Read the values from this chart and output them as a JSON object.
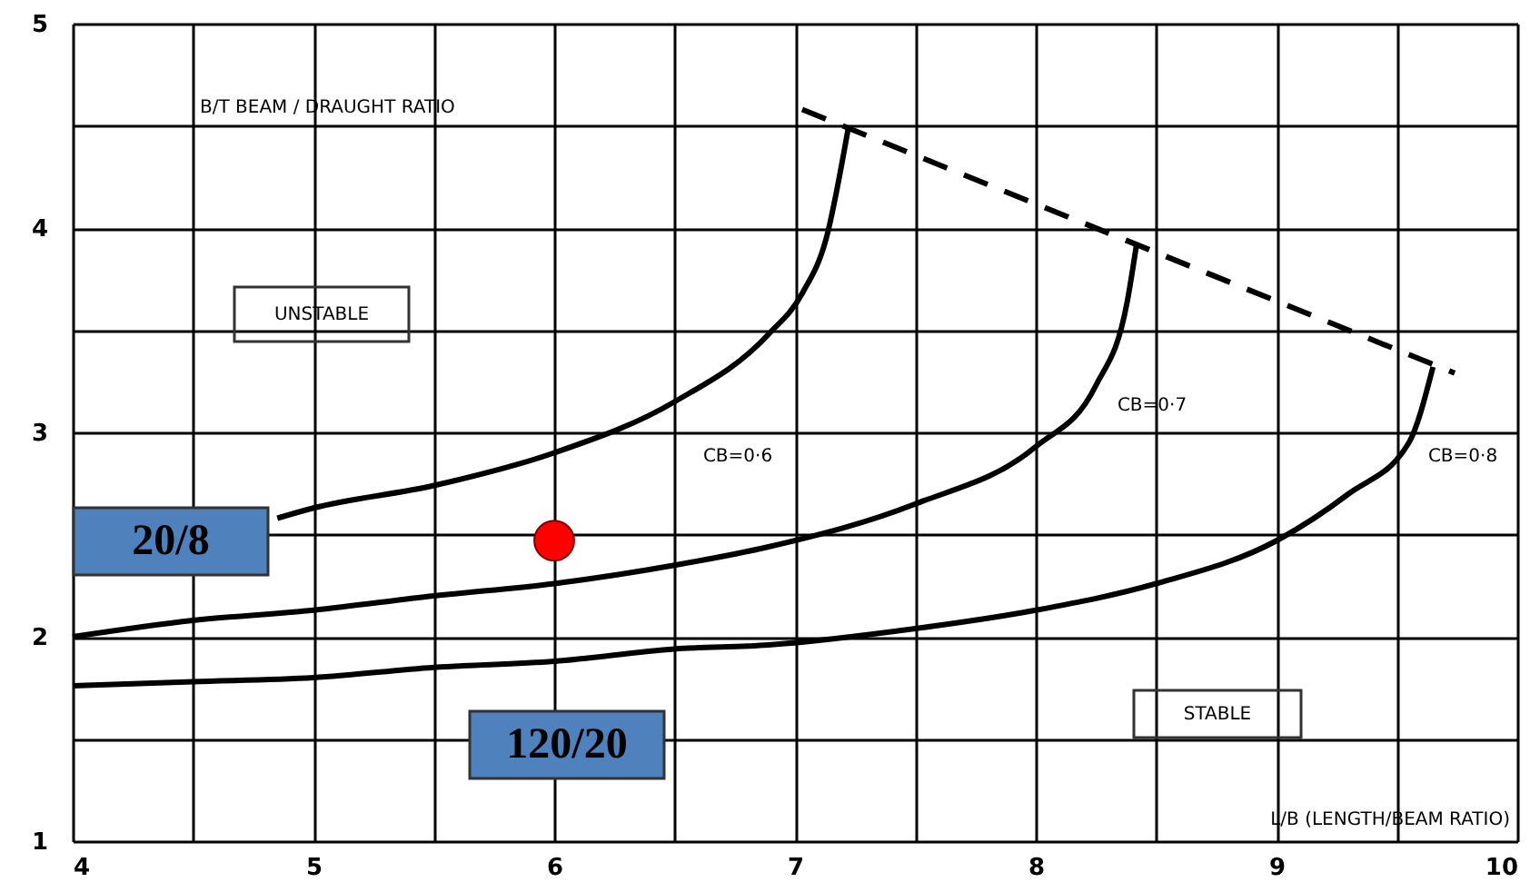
{
  "chart_data": {
    "type": "line",
    "xlabel": "L/B (LENGTH/BEAM RATIO)",
    "ylabel": "B/T  BEAM / DRAUGHT RATIO",
    "xlim": [
      4,
      10
    ],
    "xticks": [
      4,
      {
        "value": 4.5,
        "label": null
      },
      5,
      {
        "value": 5.5,
        "label": null
      },
      6,
      {
        "value": 6.5,
        "label": null
      },
      7,
      {
        "value": 7.5,
        "label": null
      },
      8,
      {
        "value": 8.5,
        "label": null
      },
      9,
      {
        "value": 9.5,
        "label": null
      },
      10
    ],
    "ylim": [
      1,
      5
    ],
    "yticks": [
      1,
      {
        "value": 1.5,
        "label": null
      },
      2,
      {
        "value": 2.5,
        "label": null
      },
      3,
      {
        "value": 3.5,
        "label": null
      },
      4,
      {
        "value": 4.5,
        "label": null
      },
      5
    ],
    "grid": true,
    "series": [
      {
        "color": "#000000",
        "line_style": "solid",
        "x": [
          4.85,
          5,
          5.5,
          6,
          6.5,
          6.89,
          7.03,
          7.13,
          7.22
        ],
        "values": [
          2.58,
          2.63,
          2.74,
          2.9,
          3.15,
          3.48,
          3.68,
          3.95,
          4.48
        ]
      },
      {
        "color": "#000000",
        "line_style": "solid",
        "x": [
          4,
          4.5,
          5,
          5.5,
          6,
          6.5,
          6.89,
          7.5,
          8,
          8.25,
          8.38,
          8.42
        ],
        "values": [
          2.0,
          2.08,
          2.13,
          2.2,
          2.26,
          2.35,
          2.44,
          2.65,
          2.93,
          3.23,
          3.64,
          3.93
        ]
      },
      {
        "color": "#000000",
        "line_style": "solid",
        "x": [
          4,
          4.5,
          5,
          5.5,
          6,
          6.5,
          6.89,
          7.5,
          8,
          8.5,
          9,
          9.3,
          9.55,
          9.65
        ],
        "values": [
          1.76,
          1.78,
          1.8,
          1.85,
          1.88,
          1.94,
          1.96,
          2.04,
          2.13,
          2.26,
          2.47,
          2.7,
          2.95,
          3.32
        ]
      },
      {
        "color": "#000000",
        "line_style": "dashed",
        "x": [
          7.03,
          9.74
        ],
        "values": [
          4.58,
          3.29
        ]
      },
      {
        "type": "scatter",
        "color": "#ff0000",
        "marker": "circle",
        "x": [
          6
        ],
        "values": [
          2.47
        ]
      }
    ],
    "annotations": [
      "CB=0·6",
      "CB=0·7",
      "CB=0·8",
      "UNSTABLE",
      "STABLE",
      "20/8",
      "120/20"
    ]
  }
}
